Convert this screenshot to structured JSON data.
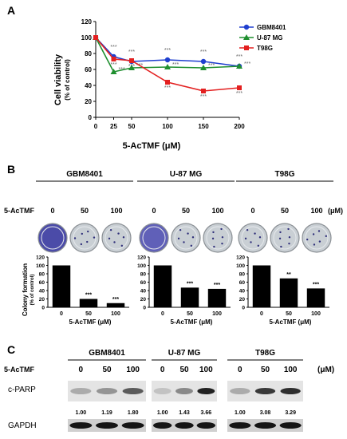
{
  "panels": {
    "a": "A",
    "b": "B",
    "c": "C"
  },
  "chart_data": [
    {
      "type": "line",
      "xlabel": "5-AcTMF (μM)",
      "ylabel": "Cell viability",
      "ylabel_sub": "(% of control)",
      "x": [
        0,
        25,
        50,
        100,
        150,
        200
      ],
      "xlim": [
        0,
        200
      ],
      "ylim": [
        0,
        120
      ],
      "yticks": [
        0,
        20,
        40,
        60,
        80,
        100,
        120
      ],
      "legend_position": "top-right",
      "series": [
        {
          "name": "GBM8401",
          "color": "#1f3fcf",
          "marker": "circle",
          "values": [
            100,
            76,
            70,
            72,
            70,
            64
          ],
          "sig": [
            "",
            "***",
            "***",
            "***",
            "***",
            "***"
          ]
        },
        {
          "name": "U-87 MG",
          "color": "#1f8f2f",
          "marker": "triangle",
          "values": [
            100,
            57,
            62,
            63,
            62,
            64
          ],
          "sig": [
            "",
            "***",
            "***",
            "***",
            "***",
            "***"
          ]
        },
        {
          "name": "T98G",
          "color": "#e32020",
          "marker": "square",
          "values": [
            100,
            73,
            71,
            44,
            33,
            37
          ],
          "sig": [
            "",
            "***",
            "***",
            "***",
            "***",
            "***"
          ]
        }
      ]
    },
    {
      "type": "bar",
      "panel": "B",
      "ylabel": "Colony formation",
      "ylabel_sub": "(% of control)",
      "xlabel": "5-AcTMF (μM)",
      "ylim": [
        0,
        120
      ],
      "yticks": [
        0,
        20,
        40,
        60,
        80,
        100,
        120
      ],
      "row_label": "5-AcTMF",
      "unit_label": "(μM)",
      "groups": [
        {
          "name": "GBM8401",
          "categories": [
            "0",
            "50",
            "100"
          ],
          "values": [
            100,
            20,
            10
          ],
          "sig": [
            "",
            "***",
            "***"
          ]
        },
        {
          "name": "U-87 MG",
          "categories": [
            "0",
            "50",
            "100"
          ],
          "values": [
            100,
            47,
            44
          ],
          "sig": [
            "",
            "***",
            "***"
          ]
        },
        {
          "name": "T98G",
          "categories": [
            "0",
            "50",
            "100"
          ],
          "values": [
            100,
            69,
            45
          ],
          "sig": [
            "",
            "**",
            "***"
          ]
        }
      ]
    }
  ],
  "blot": {
    "row_label": "5-AcTMF",
    "unit_label": "(μM)",
    "band_labels": [
      "c-PARP",
      "GAPDH"
    ],
    "groups": [
      {
        "name": "GBM8401",
        "doses": [
          "0",
          "50",
          "100"
        ],
        "values": [
          "1.00",
          "1.19",
          "1.80"
        ]
      },
      {
        "name": "U-87 MG",
        "doses": [
          "0",
          "50",
          "100"
        ],
        "values": [
          "1.00",
          "1.43",
          "3.66"
        ]
      },
      {
        "name": "T98G",
        "doses": [
          "0",
          "50",
          "100"
        ],
        "values": [
          "1.00",
          "3.08",
          "3.29"
        ]
      }
    ]
  }
}
